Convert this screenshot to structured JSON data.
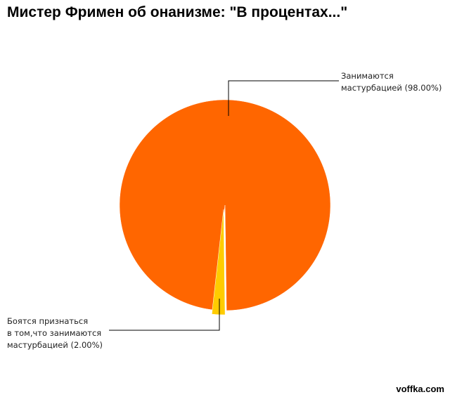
{
  "chart_data": {
    "type": "pie",
    "title": "Мистер Фримен об онанизме: \"В процентах...\"",
    "categories": [
      "Занимаются\nмастурбацией",
      "Боятся признаться\nв том,что занимаются\nмастурбацией"
    ],
    "values": [
      98,
      2
    ],
    "value_labels": [
      "(98.00%)",
      "(2.00%)"
    ],
    "colors": [
      "#ff6600",
      "#ffcc00"
    ],
    "watermark": "voffka.com"
  }
}
